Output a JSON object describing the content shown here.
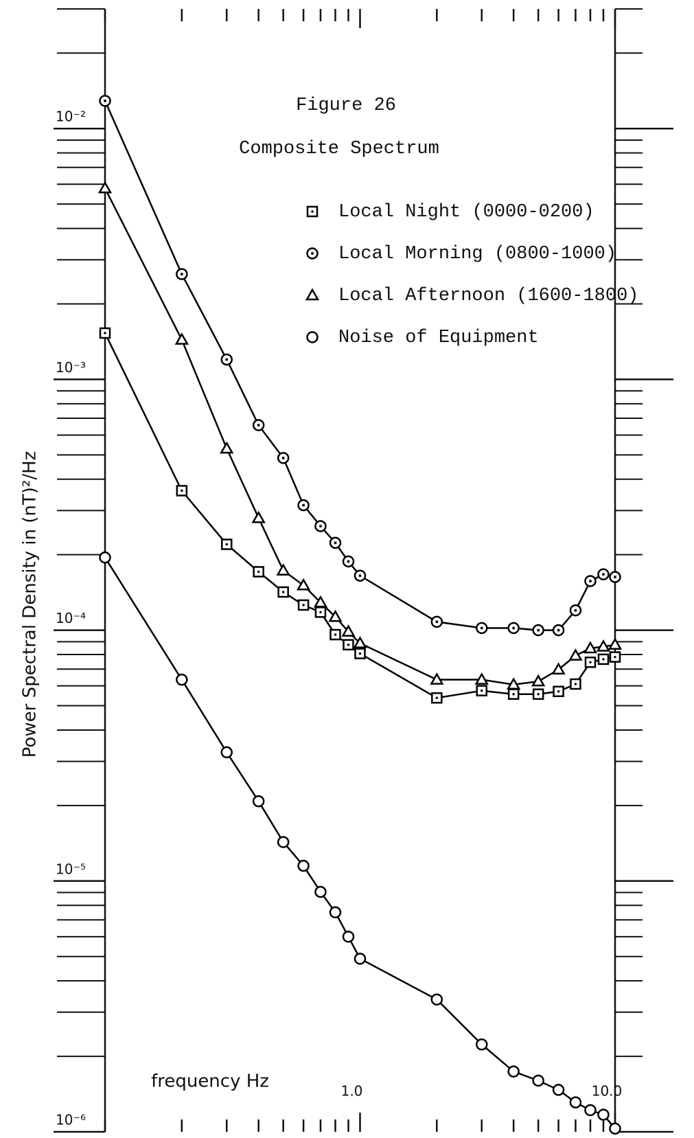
{
  "chart_data": {
    "type": "line",
    "title": "Figure 26",
    "subtitle": "Composite Spectrum",
    "xlabel": "frequency Hz",
    "ylabel": "Power Spectral Density in (nT)²/Hz",
    "log_x": true,
    "log_y": true,
    "xlim": [
      0.1,
      10
    ],
    "ylim": [
      1e-06,
      0.03
    ],
    "xticks": [
      {
        "value": 1,
        "label": "1.0"
      },
      {
        "value": 10,
        "label": "10.0"
      }
    ],
    "xminorticks": [
      0.1,
      0.2,
      0.3,
      0.4,
      0.5,
      0.6,
      0.7,
      0.8,
      0.9,
      2,
      3,
      4,
      5,
      6,
      7,
      8,
      9
    ],
    "yticks": [
      {
        "value": 1e-06,
        "label": "10⁻⁶"
      },
      {
        "value": 1e-05,
        "label": "10⁻⁵"
      },
      {
        "value": 0.0001,
        "label": "10⁻⁴"
      },
      {
        "value": 0.001,
        "label": "10⁻³"
      },
      {
        "value": 0.01,
        "label": "10⁻²"
      }
    ],
    "yminorticks": [
      2e-06,
      3e-06,
      4e-06,
      5e-06,
      6e-06,
      7e-06,
      8e-06,
      9e-06,
      2e-05,
      3e-05,
      4e-05,
      5e-05,
      6e-05,
      7e-05,
      8e-05,
      9e-05,
      0.0002,
      0.0003,
      0.0004,
      0.0005,
      0.0006,
      0.0007,
      0.0008,
      0.0009,
      0.002,
      0.003,
      0.004,
      0.005,
      0.006,
      0.007,
      0.008,
      0.009,
      0.02,
      0.03
    ],
    "x": [
      0.1,
      0.2,
      0.3,
      0.4,
      0.5,
      0.6,
      0.7,
      0.8,
      0.9,
      1,
      2,
      3,
      4,
      5,
      6,
      7,
      8,
      9,
      10
    ],
    "series": [
      {
        "name": "Local Night (0000-0200)",
        "color": "#000000",
        "marker": "square",
        "values": [
          0.00153,
          0.00036,
          0.00022,
          0.000171,
          0.000142,
          0.000126,
          0.000118,
          9.6e-05,
          8.75e-05,
          8.07e-05,
          5.37e-05,
          5.74e-05,
          5.56e-05,
          5.56e-05,
          5.7e-05,
          6.1e-05,
          7.45e-05,
          7.66e-05,
          7.82e-05
        ]
      },
      {
        "name": "Local Morning (0800-1000)",
        "color": "#000000",
        "marker": "dotcircle",
        "values": [
          0.0129,
          0.00263,
          0.0012,
          0.000657,
          0.000486,
          0.000315,
          0.00026,
          0.000223,
          0.000188,
          0.000165,
          0.000108,
          0.000102,
          0.000102,
          0.0001,
          0.0001,
          0.00012,
          0.000157,
          0.000167,
          0.000163
        ]
      },
      {
        "name": "Local Afternoon (1600-1800)",
        "color": "#000000",
        "marker": "triangle",
        "values": [
          0.00578,
          0.00144,
          0.00053,
          0.00028,
          0.000173,
          0.000151,
          0.000129,
          0.000113,
          9.87e-05,
          8.87e-05,
          6.35e-05,
          6.35e-05,
          6.07e-05,
          6.25e-05,
          6.97e-05,
          7.92e-05,
          8.47e-05,
          8.6e-05,
          8.75e-05
        ]
      },
      {
        "name": "Noise of Equipment",
        "color": "#000000",
        "marker": "circle",
        "values": [
          0.000195,
          6.35e-05,
          3.26e-05,
          2.08e-05,
          1.43e-05,
          1.15e-05,
          9.05e-06,
          7.5e-06,
          6e-06,
          4.9e-06,
          3.37e-06,
          2.23e-06,
          1.74e-06,
          1.6e-06,
          1.47e-06,
          1.31e-06,
          1.22e-06,
          1.17e-06,
          1.03e-06
        ]
      }
    ]
  }
}
